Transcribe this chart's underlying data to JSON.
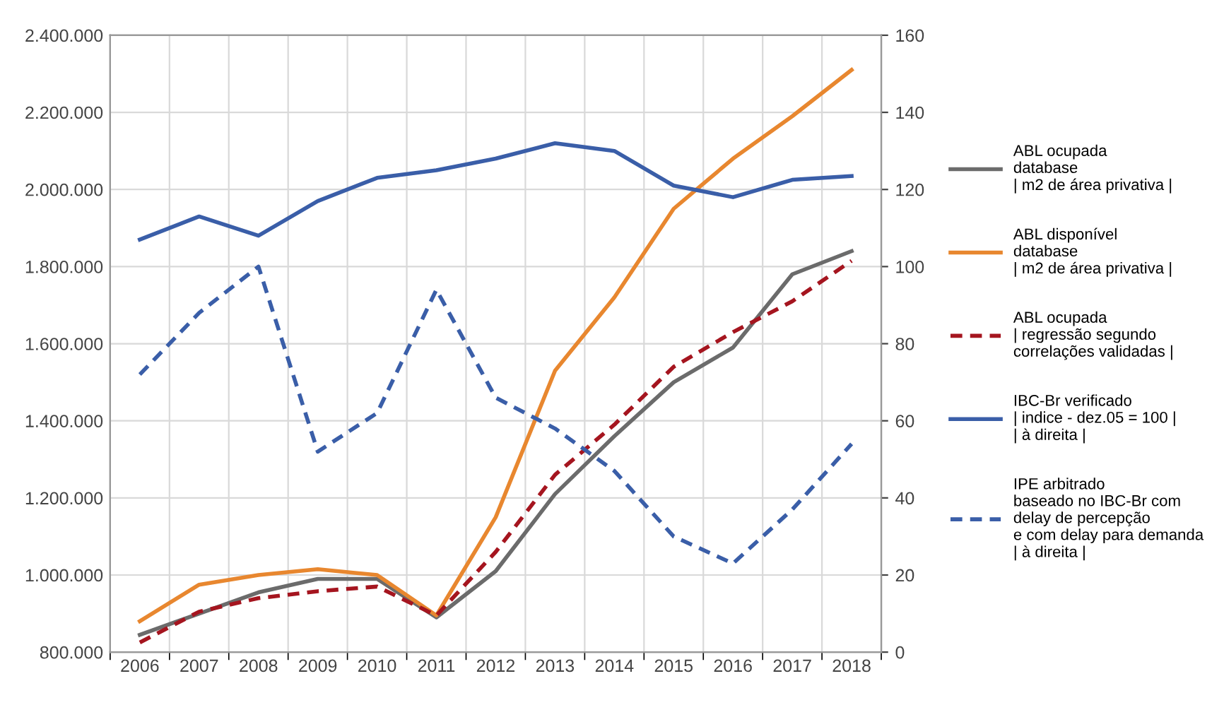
{
  "chart_data": {
    "type": "line",
    "categories": [
      "2006",
      "2007",
      "2008",
      "2009",
      "2010",
      "2011",
      "2012",
      "2013",
      "2014",
      "2015",
      "2016",
      "2017",
      "2018"
    ],
    "series": [
      {
        "name": "ABL ocupada\ndatabase\n| m2 de área privativa |",
        "color": "#6b6b6b",
        "line_style": "solid",
        "values": [
          845000,
          900000,
          955000,
          990000,
          990000,
          890000,
          1010000,
          1210000,
          1360000,
          1500000,
          1590000,
          1780000,
          1840000
        ]
      },
      {
        "name": "ABL disponível\ndatabase\n| m2 de área privativa |",
        "color": "#e8872f",
        "line_style": "solid",
        "values": [
          880000,
          975000,
          1000000,
          1015000,
          1000000,
          895000,
          1150000,
          1530000,
          1720000,
          1950000,
          2080000,
          2190000,
          2310000
        ]
      },
      {
        "name": "ABL ocupada\n| regressão segundo\ncorrelações validadas |",
        "color": "#a5151f",
        "line_style": "dashed",
        "values": [
          825000,
          905000,
          940000,
          958000,
          970000,
          895000,
          1060000,
          1260000,
          1390000,
          1540000,
          1630000,
          1710000,
          1815000
        ]
      },
      {
        "name": "IBC-Br verificado\n| indice - dez.05 = 100 |\n| à direita |",
        "color": "#3a5ea8",
        "line_style": "solid",
        "axis": "y2",
        "values": [
          107,
          113,
          108,
          117,
          123,
          125,
          128,
          132,
          130,
          121,
          118,
          122.5,
          123.5
        ]
      },
      {
        "name": "IPE arbitrado\nbaseado no IBC-Br com\ndelay de percepção\ne com delay para demanda\n| à direita |",
        "color": "#3a5ea8",
        "line_style": "dashed",
        "axis": "y2",
        "values": [
          72,
          88,
          100,
          52,
          62,
          94,
          66,
          58,
          47,
          30,
          23,
          37,
          54
        ]
      }
    ],
    "ylim": [
      800000,
      2400000
    ],
    "yticks": [
      {
        "value": 800000,
        "label": "800.000"
      },
      {
        "value": 1000000,
        "label": "1.000.000"
      },
      {
        "value": 1200000,
        "label": "1.200.000"
      },
      {
        "value": 1400000,
        "label": "1.400.000"
      },
      {
        "value": 1600000,
        "label": "1.600.000"
      },
      {
        "value": 1800000,
        "label": "1.800.000"
      },
      {
        "value": 2000000,
        "label": "2.000.000"
      },
      {
        "value": 2200000,
        "label": "2.200.000"
      },
      {
        "value": 2400000,
        "label": "2.400.000"
      }
    ],
    "y2lim": [
      0,
      160
    ],
    "y2ticks": [
      0,
      20,
      40,
      60,
      80,
      100,
      120,
      140,
      160
    ],
    "grid": true,
    "legend": "right",
    "marker": "none"
  }
}
